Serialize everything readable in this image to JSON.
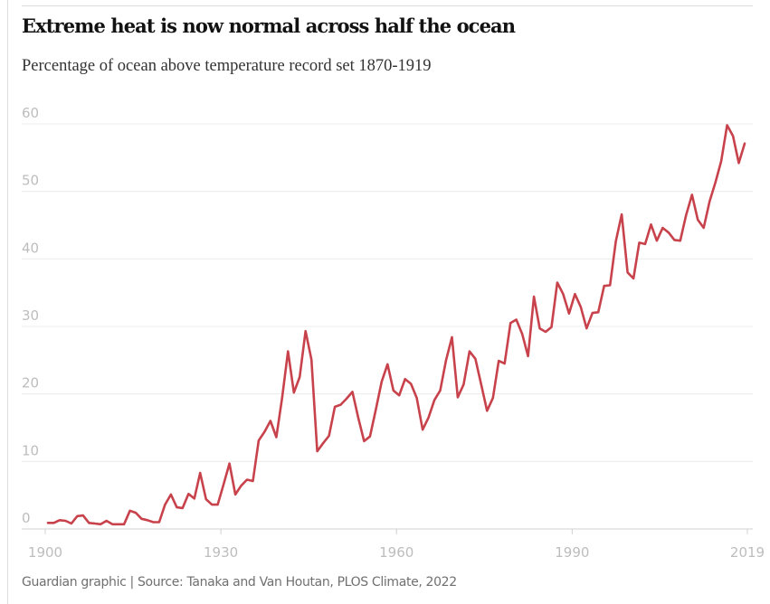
{
  "header": {
    "title": "Extreme heat is now normal across half the ocean",
    "subtitle": "Percentage of ocean above temperature record set 1870-1919"
  },
  "footer": {
    "source": "Guardian graphic | Source: Tanaka and Van Houtan, PLOS Climate, 2022"
  },
  "colors": {
    "line": "#c8424c",
    "grid": "#ececec",
    "axis": "#d0d0d0",
    "tick_text": "#bdbdbd"
  },
  "chart_data": {
    "type": "line",
    "title": "Extreme heat is now normal across half the ocean",
    "subtitle": "Percentage of ocean above temperature record set 1870-1919",
    "xlabel": "",
    "ylabel": "",
    "xlim": [
      1900,
      2019
    ],
    "ylim": [
      0,
      60
    ],
    "grid": true,
    "legend": "none",
    "x_ticks": [
      1900,
      1930,
      1960,
      1990,
      2019
    ],
    "y_ticks": [
      0,
      10,
      20,
      30,
      40,
      50,
      60
    ],
    "x_tick_labels": [
      "1900",
      "1930",
      "1960",
      "1990",
      "2019"
    ],
    "y_tick_labels": [
      "0",
      "10",
      "20",
      "30",
      "40",
      "50",
      "60"
    ],
    "series": [
      {
        "name": "Percentage of ocean above 1870-1919 temperature record",
        "x": [
          1900,
          1901,
          1902,
          1903,
          1904,
          1905,
          1906,
          1907,
          1908,
          1909,
          1910,
          1911,
          1912,
          1913,
          1914,
          1915,
          1916,
          1917,
          1918,
          1919,
          1920,
          1921,
          1922,
          1923,
          1924,
          1925,
          1926,
          1927,
          1928,
          1929,
          1930,
          1931,
          1932,
          1933,
          1934,
          1935,
          1936,
          1937,
          1938,
          1939,
          1940,
          1941,
          1942,
          1943,
          1944,
          1945,
          1946,
          1947,
          1948,
          1949,
          1950,
          1951,
          1952,
          1953,
          1954,
          1955,
          1956,
          1957,
          1958,
          1959,
          1960,
          1961,
          1962,
          1963,
          1964,
          1965,
          1966,
          1967,
          1968,
          1969,
          1970,
          1971,
          1972,
          1973,
          1974,
          1975,
          1976,
          1977,
          1978,
          1979,
          1980,
          1981,
          1982,
          1983,
          1984,
          1985,
          1986,
          1987,
          1988,
          1989,
          1990,
          1991,
          1992,
          1993,
          1994,
          1995,
          1996,
          1997,
          1998,
          1999,
          2000,
          2001,
          2002,
          2003,
          2004,
          2005,
          2006,
          2007,
          2008,
          2009,
          2010,
          2011,
          2012,
          2013,
          2014,
          2015,
          2016,
          2017,
          2018,
          2019
        ],
        "values": [
          0.9,
          0.9,
          1.3,
          1.2,
          0.8,
          1.9,
          2.0,
          0.9,
          0.8,
          0.7,
          1.2,
          0.7,
          0.7,
          0.7,
          2.7,
          2.4,
          1.5,
          1.3,
          1.0,
          1.0,
          3.6,
          5.1,
          3.2,
          3.1,
          5.2,
          4.5,
          8.3,
          4.4,
          3.6,
          3.6,
          6.6,
          9.7,
          5.1,
          6.4,
          7.3,
          7.1,
          13.1,
          14.4,
          16.0,
          13.6,
          19.4,
          26.3,
          20.2,
          22.5,
          29.3,
          25.1,
          11.5,
          12.7,
          13.8,
          18.1,
          18.4,
          19.3,
          20.3,
          16.5,
          13.0,
          13.7,
          17.7,
          21.8,
          24.4,
          20.5,
          19.8,
          22.2,
          21.5,
          19.4,
          14.7,
          16.5,
          19.1,
          20.5,
          25.0,
          28.4,
          19.5,
          21.4,
          26.3,
          25.2,
          21.4,
          17.5,
          19.4,
          24.9,
          24.5,
          30.5,
          31.0,
          28.9,
          25.6,
          34.4,
          29.7,
          29.2,
          29.9,
          36.5,
          34.8,
          31.9,
          34.8,
          32.9,
          29.7,
          32.0,
          32.1,
          36.0,
          36.1,
          42.6,
          46.6,
          38.0,
          37.1,
          42.4,
          42.2,
          45.1,
          42.7,
          44.6,
          43.9,
          42.8,
          42.7,
          46.5,
          49.5,
          45.8,
          44.6,
          48.5,
          51.3,
          54.5,
          59.8,
          58.2,
          54.2,
          57.1
        ]
      }
    ]
  }
}
